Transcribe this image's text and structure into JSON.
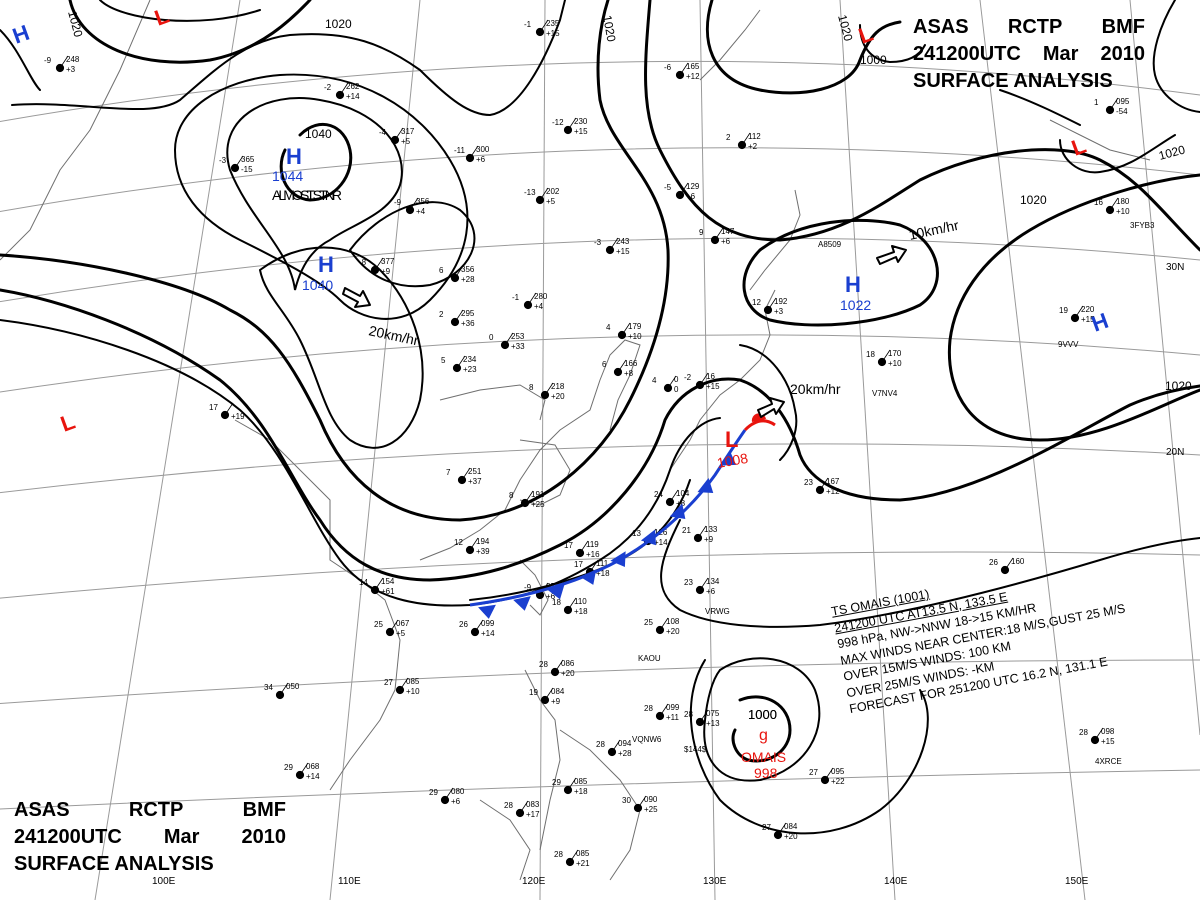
{
  "header": {
    "agency": "ASAS",
    "station": "RCTP",
    "unit": "BMF",
    "time": "241200UTC",
    "month": "Mar",
    "year": "2010",
    "product": "SURFACE ANALYSIS"
  },
  "pressure_centers": [
    {
      "type": "H",
      "value": "1044",
      "color": "#1a3fd0",
      "note": "ALMOST STNR"
    },
    {
      "type": "H",
      "value": "1040",
      "color": "#1a3fd0"
    },
    {
      "type": "H",
      "value": "1022",
      "color": "#1a3fd0"
    },
    {
      "type": "H",
      "value": "",
      "color": "#1a3fd0"
    },
    {
      "type": "H",
      "value": "",
      "color": "#1a3fd0"
    },
    {
      "type": "L",
      "value": "1008",
      "color": "#e8140e"
    },
    {
      "type": "L",
      "value": "",
      "color": "#e8140e"
    },
    {
      "type": "L",
      "value": "",
      "color": "#e8140e"
    },
    {
      "type": "L",
      "value": "",
      "color": "#e8140e"
    }
  ],
  "motion_labels": [
    "20km/hr",
    "10km/hr",
    "20km/hr"
  ],
  "isobar_labels": [
    "1020",
    "1020",
    "1020",
    "1020",
    "1040",
    "1020",
    "1020",
    "1000",
    "1020",
    "1000"
  ],
  "longitudes": [
    "100E",
    "110E",
    "120E",
    "130E",
    "140E",
    "150E"
  ],
  "latitudes": [
    "30N",
    "20N"
  ],
  "storm": {
    "symbol_label": "OMAIS",
    "pressure": "998",
    "isobar": "1000",
    "bulletin": [
      "TS  OMAIS  (1001)",
      "241200 UTC  AT13.5 N, 133.5 E",
      "998 hPa, NW->NNW  18->15 KM/HR",
      "MAX WINDS NEAR CENTER:18 M/S,GUST 25 M/S",
      "OVER 15M/S WINDS: 100 KM",
      "OVER 25M/S WINDS: -KM",
      "FORECAST FOR 251200 UTC 16.2 N, 131.1 E"
    ]
  },
  "station_plots": [
    {
      "temp": "-9",
      "pres": "248",
      "tend": "+3"
    },
    {
      "temp": "-2",
      "pres": "262",
      "tend": "+14"
    },
    {
      "temp": "-3",
      "pres": "365",
      "tend": "-15"
    },
    {
      "temp": "-4",
      "pres": "317",
      "tend": "+5"
    },
    {
      "temp": "-11",
      "pres": "300",
      "tend": "+6"
    },
    {
      "temp": "-9",
      "pres": "356",
      "tend": "+4"
    },
    {
      "temp": "-8",
      "pres": "377",
      "tend": "+9"
    },
    {
      "temp": "6",
      "pres": "356",
      "tend": "+28"
    },
    {
      "temp": "-1",
      "pres": "280",
      "tend": "+4"
    },
    {
      "temp": "0",
      "pres": "253",
      "tend": "+33"
    },
    {
      "temp": "-3",
      "pres": "243",
      "tend": "+15"
    },
    {
      "temp": "-12",
      "pres": "230",
      "tend": "+15"
    },
    {
      "temp": "-13",
      "pres": "202",
      "tend": "+5"
    },
    {
      "temp": "-1",
      "pres": "235",
      "tend": "+15"
    },
    {
      "temp": "4",
      "pres": "179",
      "tend": "+10"
    },
    {
      "temp": "6",
      "pres": "166",
      "tend": "+8"
    },
    {
      "temp": "8",
      "pres": "218",
      "tend": "+20"
    },
    {
      "temp": "2",
      "pres": "295",
      "tend": "+36"
    },
    {
      "temp": "5",
      "pres": "234",
      "tend": "+23"
    },
    {
      "temp": "7",
      "pres": "251",
      "tend": "+37"
    },
    {
      "temp": "8",
      "pres": "191",
      "tend": "+25"
    },
    {
      "temp": "17",
      "pres": "119",
      "tend": "+16"
    },
    {
      "temp": "24",
      "pres": "104",
      "tend": "+8"
    },
    {
      "temp": "13",
      "pres": "126",
      "tend": "+14"
    },
    {
      "temp": "12",
      "pres": "194",
      "tend": "+39"
    },
    {
      "temp": "14",
      "pres": "154",
      "tend": "+61"
    },
    {
      "temp": "17",
      "pres": "111",
      "tend": "+18"
    },
    {
      "temp": "18",
      "pres": "110",
      "tend": "+18"
    },
    {
      "temp": "21",
      "pres": "133",
      "tend": "+9"
    },
    {
      "temp": "23",
      "pres": "134",
      "tend": "+6"
    },
    {
      "temp": "25",
      "pres": "108",
      "tend": "+20"
    },
    {
      "temp": "26",
      "pres": "099",
      "tend": "+14"
    },
    {
      "temp": "25",
      "pres": "067",
      "tend": "+5"
    },
    {
      "temp": "27",
      "pres": "085",
      "tend": "+10"
    },
    {
      "temp": "34",
      "pres": "050",
      "tend": ""
    },
    {
      "temp": "29",
      "pres": "068",
      "tend": "+14"
    },
    {
      "temp": "29",
      "pres": "080",
      "tend": "+6"
    },
    {
      "temp": "28",
      "pres": "086",
      "tend": "+20"
    },
    {
      "temp": "19",
      "pres": "084",
      "tend": "+9"
    },
    {
      "temp": "28",
      "pres": "099",
      "tend": "+11"
    },
    {
      "temp": "28",
      "pres": "094",
      "tend": "+28"
    },
    {
      "temp": "28",
      "pres": "075",
      "tend": "+13"
    },
    {
      "temp": "29",
      "pres": "085",
      "tend": "+18"
    },
    {
      "temp": "30",
      "pres": "090",
      "tend": "+25"
    },
    {
      "temp": "28",
      "pres": "083",
      "tend": "+17"
    },
    {
      "temp": "28",
      "pres": "085",
      "tend": "+21"
    },
    {
      "temp": "27",
      "pres": "084",
      "tend": "+20"
    },
    {
      "temp": "27",
      "pres": "095",
      "tend": "+22"
    },
    {
      "temp": "28",
      "pres": "098",
      "tend": "+15"
    },
    {
      "temp": "26",
      "pres": "160",
      "tend": ""
    },
    {
      "temp": "23",
      "pres": "167",
      "tend": "+12"
    },
    {
      "temp": "18",
      "pres": "170",
      "tend": "+10"
    },
    {
      "temp": "19",
      "pres": "220",
      "tend": "+15"
    },
    {
      "temp": "16",
      "pres": "180",
      "tend": "+10"
    },
    {
      "temp": "1",
      "pres": "095",
      "tend": "-54"
    },
    {
      "temp": "17",
      "pres": "",
      "tend": "+19"
    },
    {
      "temp": "12",
      "pres": "192",
      "tend": "+3"
    },
    {
      "temp": "9",
      "pres": "147",
      "tend": "+6"
    },
    {
      "temp": "2",
      "pres": "112",
      "tend": "+2"
    },
    {
      "temp": "-5",
      "pres": "129",
      "tend": "+6"
    },
    {
      "temp": "-6",
      "pres": "165",
      "tend": "+12"
    },
    {
      "temp": "-2",
      "pres": "16",
      "tend": "+15"
    },
    {
      "temp": "4",
      "pres": "0",
      "tend": "0"
    },
    {
      "temp": "-9",
      "pres": "271",
      "tend": "+6"
    }
  ],
  "ship_ids": [
    "A8509",
    "V7NV4",
    "9VVV",
    "3FYB3",
    "VRWG",
    "KAOU",
    "VQNW6",
    "$144$",
    "4XRCE"
  ]
}
